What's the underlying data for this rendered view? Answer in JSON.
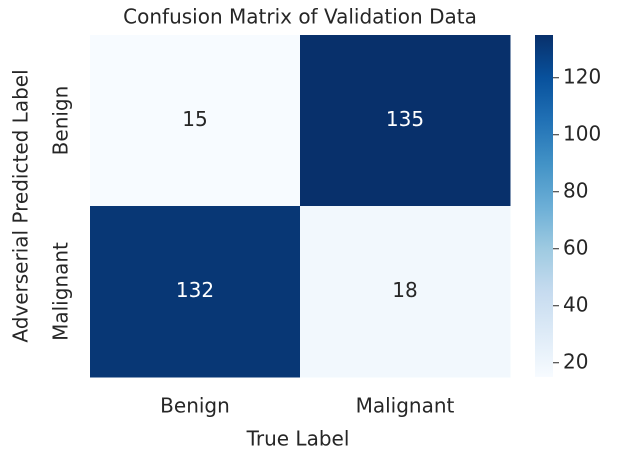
{
  "chart_data": {
    "type": "heatmap",
    "title": "Confusion Matrix of Validation Data",
    "xlabel": "True Label",
    "ylabel": "Adverserial Predicted Label",
    "xcategories": [
      "Benign",
      "Malignant"
    ],
    "ycategories": [
      "Benign",
      "Malignant"
    ],
    "values": [
      [
        15,
        135
      ],
      [
        132,
        18
      ]
    ],
    "colormap": [
      "#f7fbff",
      "#deebf7",
      "#c6dbef",
      "#9ecae1",
      "#6baed6",
      "#4292c6",
      "#2171b5",
      "#08519c",
      "#08306b"
    ],
    "clim": [
      15,
      135
    ],
    "cticks": [
      20,
      40,
      60,
      80,
      100,
      120
    ]
  }
}
